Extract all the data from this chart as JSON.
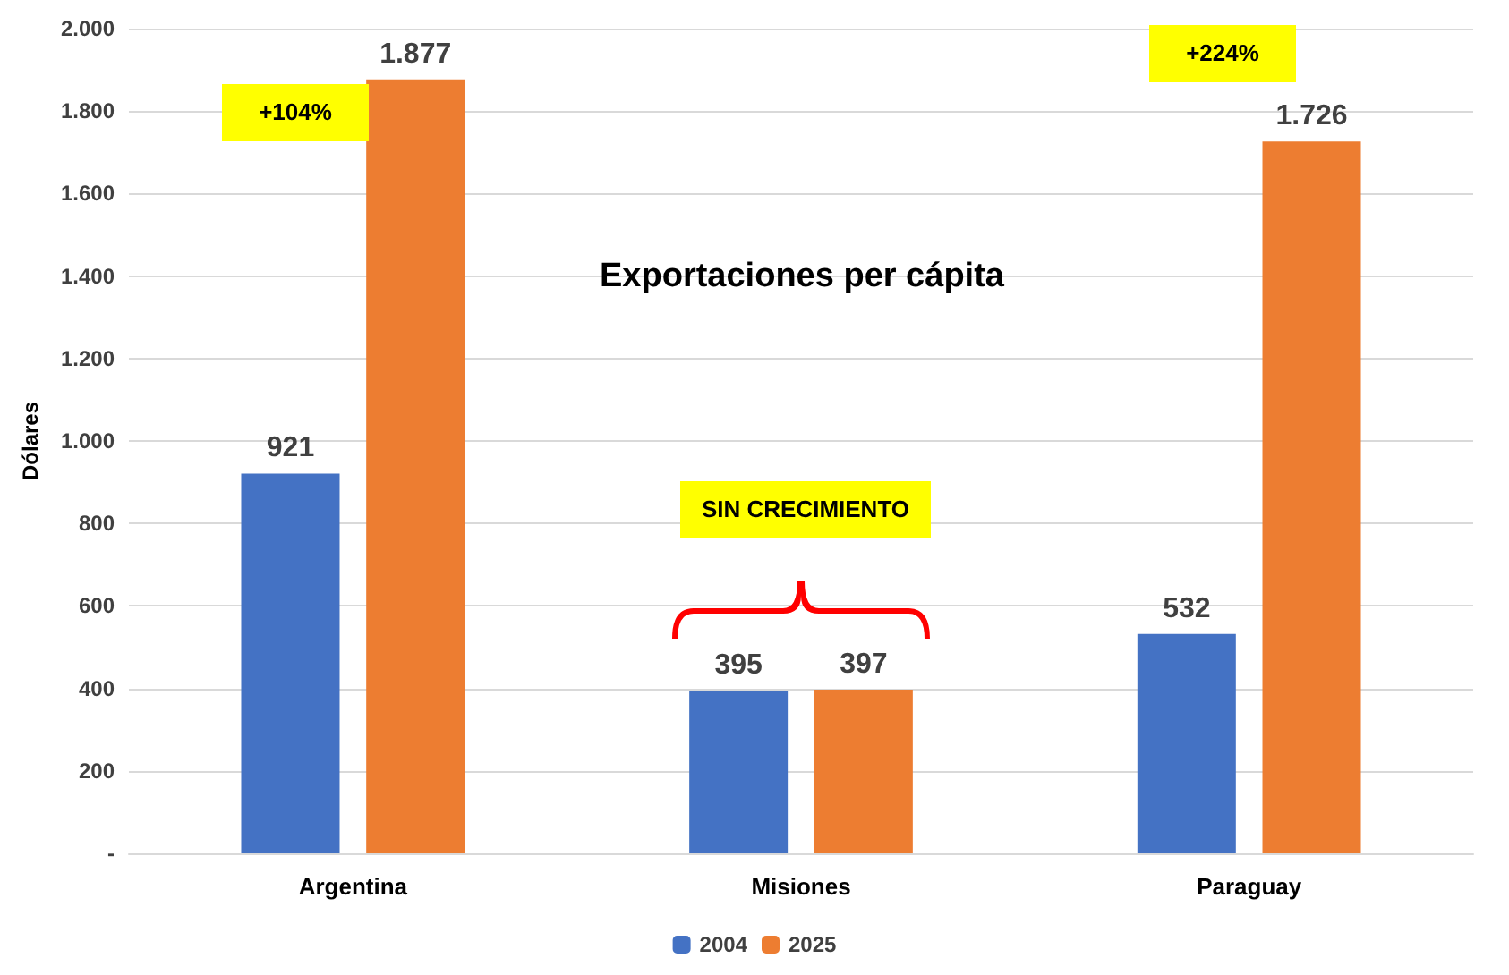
{
  "chart_data": {
    "type": "bar",
    "title": "Exportaciones per cápita",
    "ylabel": "Dólares",
    "categories": [
      "Argentina",
      "Misiones",
      "Paraguay"
    ],
    "series": [
      {
        "name": "2004",
        "color": "#4472c4",
        "values": [
          921,
          395,
          532
        ],
        "value_labels": [
          "921",
          "395",
          "532"
        ]
      },
      {
        "name": "2025",
        "color": "#ed7d31",
        "values": [
          1877,
          397,
          1726
        ],
        "value_labels": [
          "1.877",
          "397",
          "1.726"
        ]
      }
    ],
    "ylim": [
      0,
      2000
    ],
    "yticks": [
      {
        "value": 0,
        "label": "-"
      },
      200,
      400,
      600,
      800,
      {
        "value": 1000,
        "label": "1.000"
      },
      {
        "value": 1200,
        "label": "1.200"
      },
      {
        "value": 1400,
        "label": "1.400"
      },
      {
        "value": 1600,
        "label": "1.600"
      },
      {
        "value": 1800,
        "label": "1.800"
      },
      {
        "value": 2000,
        "label": "2.000"
      }
    ],
    "grid": "y",
    "legend": "bottom",
    "annotations": [
      "+104%",
      "SIN CRECIMIENTO",
      "+224%"
    ]
  }
}
